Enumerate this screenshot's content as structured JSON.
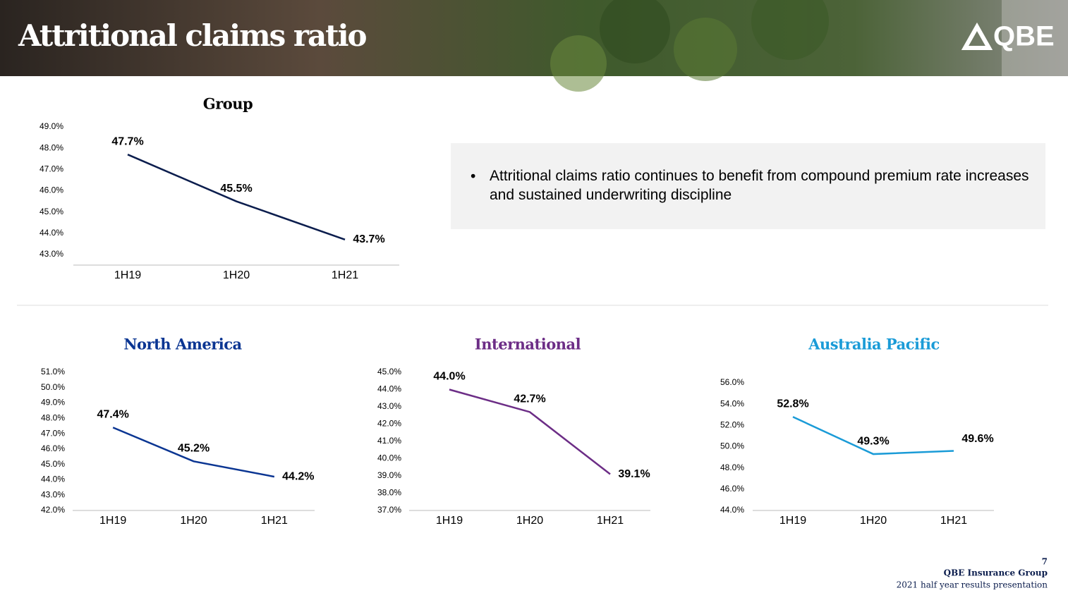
{
  "header": {
    "title": "Attritional claims ratio",
    "logo": "QBE"
  },
  "bullet": "Attritional claims ratio continues to benefit from compound premium rate increases and sustained underwriting discipline",
  "footer": {
    "page": "7",
    "company": "QBE Insurance Group",
    "subtitle": "2021 half year results presentation"
  },
  "chart_data": [
    {
      "type": "line",
      "title": "Group",
      "color": "#0b1d4d",
      "categories": [
        "1H19",
        "1H20",
        "1H21"
      ],
      "values": [
        47.7,
        45.5,
        43.7
      ],
      "value_labels": [
        "47.7%",
        "45.5%",
        "43.7%"
      ],
      "ylim": [
        42.5,
        49
      ],
      "yticks": [
        {
          "value": 43,
          "label": "43.0%"
        },
        {
          "value": 44,
          "label": "44.0%"
        },
        {
          "value": 45,
          "label": "45.0%"
        },
        {
          "value": 46,
          "label": "46.0%"
        },
        {
          "value": 47,
          "label": "47.0%"
        },
        {
          "value": 48,
          "label": "48.0%"
        },
        {
          "value": 49,
          "label": "49.0%"
        }
      ]
    },
    {
      "type": "line",
      "title": "North America",
      "color": "#0a3592",
      "categories": [
        "1H19",
        "1H20",
        "1H21"
      ],
      "values": [
        47.4,
        45.2,
        44.2
      ],
      "value_labels": [
        "47.4%",
        "45.2%",
        "44.2%"
      ],
      "ylim": [
        42,
        51
      ],
      "yticks": [
        {
          "value": 42,
          "label": "42.0%"
        },
        {
          "value": 43,
          "label": "43.0%"
        },
        {
          "value": 44,
          "label": "44.0%"
        },
        {
          "value": 45,
          "label": "45.0%"
        },
        {
          "value": 46,
          "label": "46.0%"
        },
        {
          "value": 47,
          "label": "47.0%"
        },
        {
          "value": 48,
          "label": "48.0%"
        },
        {
          "value": 49,
          "label": "49.0%"
        },
        {
          "value": 50,
          "label": "50.0%"
        },
        {
          "value": 51,
          "label": "51.0%"
        }
      ]
    },
    {
      "type": "line",
      "title": "International",
      "color": "#6c2d86",
      "categories": [
        "1H19",
        "1H20",
        "1H21"
      ],
      "values": [
        44.0,
        42.7,
        39.1
      ],
      "value_labels": [
        "44.0%",
        "42.7%",
        "39.1%"
      ],
      "ylim": [
        37,
        45
      ],
      "yticks": [
        {
          "value": 37,
          "label": "37.0%"
        },
        {
          "value": 38,
          "label": "38.0%"
        },
        {
          "value": 39,
          "label": "39.0%"
        },
        {
          "value": 40,
          "label": "40.0%"
        },
        {
          "value": 41,
          "label": "41.0%"
        },
        {
          "value": 42,
          "label": "42.0%"
        },
        {
          "value": 43,
          "label": "43.0%"
        },
        {
          "value": 44,
          "label": "44.0%"
        },
        {
          "value": 45,
          "label": "45.0%"
        }
      ]
    },
    {
      "type": "line",
      "title": "Australia Pacific",
      "color": "#1a9bd7",
      "categories": [
        "1H19",
        "1H20",
        "1H21"
      ],
      "values": [
        52.8,
        49.3,
        49.6
      ],
      "value_labels": [
        "52.8%",
        "49.3%",
        "49.6%"
      ],
      "ylim": [
        44,
        56
      ],
      "yticks": [
        {
          "value": 44,
          "label": "44.0%"
        },
        {
          "value": 46,
          "label": "46.0%"
        },
        {
          "value": 48,
          "label": "48.0%"
        },
        {
          "value": 50,
          "label": "50.0%"
        },
        {
          "value": 52,
          "label": "52.0%"
        },
        {
          "value": 54,
          "label": "54.0%"
        },
        {
          "value": 56,
          "label": "56.0%"
        }
      ]
    }
  ]
}
